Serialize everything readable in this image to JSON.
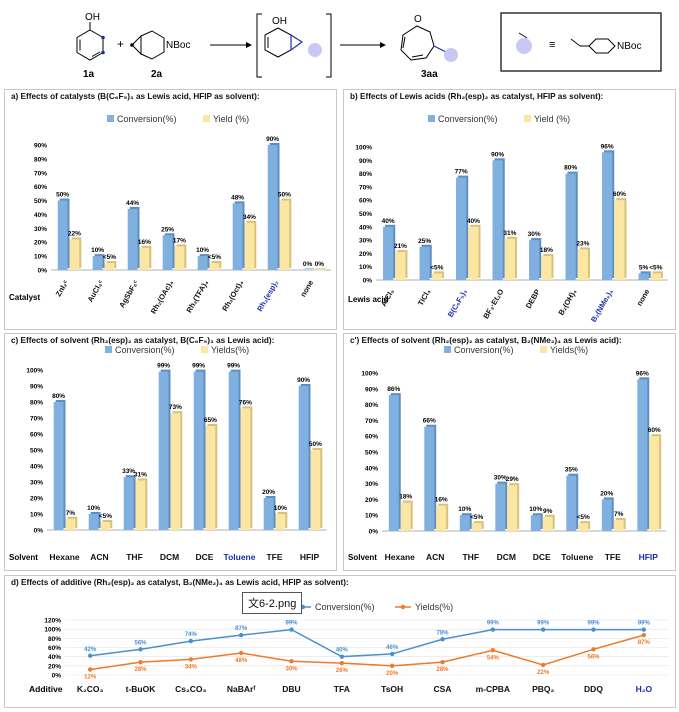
{
  "scheme": {
    "labels": {
      "reactant1": "1a",
      "reactant2": "2a",
      "product": "3aa",
      "plus": "+",
      "boc": "NBoc",
      "oh": "OH",
      "o": "O"
    },
    "legend_boc": "NBoc",
    "equiv": "≡"
  },
  "tooltip": "文6-2.png",
  "colors": {
    "conversion": "#7fb0e0",
    "yield": "#fbe7a3",
    "conv_line": "#4a90d0",
    "yield_line": "#ee7a2b",
    "highlight": "#1a2fb0",
    "bubble": "#c8c8f4"
  },
  "chart_data": [
    {
      "id": "a",
      "type": "bar",
      "title": "a) Effects of catalysts (B(C₆F₅)₃ as Lewis acid, HFIP as solvent):",
      "legend": [
        "Conversion(%)",
        "Yield (%)"
      ],
      "axis_category_label": "Catalyst",
      "categories": [
        "ZnI₂ᶜ",
        "AuCl₃ᶜ",
        "AgSbF₆ᶜ",
        "Rh₂(OAc)₄",
        "Rh₂(TFA)₄",
        "Rh₂(Oct)₄",
        "Rh₂(esp)₂",
        "none"
      ],
      "highlight_index": 6,
      "ylim": [
        0,
        90
      ],
      "yticks": [
        "0%",
        "10%",
        "20%",
        "30%",
        "40%",
        "50%",
        "60%",
        "70%",
        "80%",
        "90%"
      ],
      "series": [
        {
          "name": "Conversion(%)",
          "values": [
            50,
            10,
            44,
            25,
            10,
            48,
            90,
            0
          ],
          "labels": [
            "50%",
            "10%",
            "44%",
            "25%",
            "10%",
            "48%",
            "90%",
            "0%"
          ]
        },
        {
          "name": "Yield (%)",
          "values": [
            22,
            5,
            16,
            17,
            5,
            34,
            50,
            0
          ],
          "labels": [
            "22%",
            "<5%",
            "16%",
            "17%",
            "<5%",
            "34%",
            "50%",
            "0%"
          ]
        }
      ]
    },
    {
      "id": "b",
      "type": "bar",
      "title": "b) Effects of Lewis acids (Rh₂(esp)₂ as catalyst, HFIP as solvent):",
      "legend": [
        "Conversion(%)",
        "Yield (%)"
      ],
      "axis_category_label": "Lewis acid",
      "categories": [
        "AlCl₃",
        "TiCl₄",
        "B(C₆F₅)₃",
        "BF₃·Et₂O",
        "DEBP",
        "B₂(OH)₄",
        "B₂(NMe₂)₄",
        "none"
      ],
      "highlight_index": 2,
      "highlight_index2": 6,
      "ylim": [
        0,
        100
      ],
      "yticks": [
        "0%",
        "10%",
        "20%",
        "30%",
        "40%",
        "50%",
        "60%",
        "70%",
        "80%",
        "90%",
        "100%"
      ],
      "series": [
        {
          "name": "Conversion(%)",
          "values": [
            40,
            25,
            77,
            90,
            30,
            80,
            96,
            5
          ],
          "labels": [
            "40%",
            "25%",
            "77%",
            "90%",
            "30%",
            "80%",
            "96%",
            "5%"
          ]
        },
        {
          "name": "Yield (%)",
          "values": [
            21,
            5,
            40,
            31,
            18,
            23,
            60,
            5
          ],
          "labels": [
            "21%",
            "<5%",
            "40%",
            "31%",
            "18%",
            "23%",
            "60%",
            "<5%"
          ]
        }
      ]
    },
    {
      "id": "c",
      "type": "bar",
      "title": "c) Effects of solvent (Rh₂(esp)₂ as catalyst, B(C₆F₅)₃ as Lewis acid):",
      "legend": [
        "Conversion(%)",
        "Yields(%)"
      ],
      "axis_category_label": "Solvent",
      "categories": [
        "Hexane",
        "ACN",
        "THF",
        "DCM",
        "DCE",
        "Toluene",
        "TFE",
        "HFIP"
      ],
      "highlight_index": 5,
      "ylim": [
        0,
        100
      ],
      "yticks": [
        "0%",
        "10%",
        "20%",
        "30%",
        "40%",
        "50%",
        "60%",
        "70%",
        "80%",
        "90%",
        "100%"
      ],
      "series": [
        {
          "name": "Conversion(%)",
          "values": [
            80,
            10,
            33,
            99,
            99,
            99,
            20,
            90
          ],
          "labels": [
            "80%",
            "10%",
            "33%",
            "99%",
            "99%",
            "99%",
            "20%",
            "90%"
          ]
        },
        {
          "name": "Yields(%)",
          "values": [
            7,
            5,
            31,
            73,
            65,
            76,
            10,
            50
          ],
          "labels": [
            "7%",
            "<5%",
            "31%",
            "73%",
            "65%",
            "76%",
            "10%",
            "50%"
          ]
        }
      ]
    },
    {
      "id": "c2",
      "type": "bar",
      "title": "c') Effects of solvent (Rh₂(esp)₂ as catalyst, B₂(NMe₂)₄ as Lewis acid):",
      "legend": [
        "Conversion(%)",
        "Yields(%)"
      ],
      "axis_category_label": "Solvent",
      "categories": [
        "Hexane",
        "ACN",
        "THF",
        "DCM",
        "DCE",
        "Toluene",
        "TFE",
        "HFIP"
      ],
      "highlight_index": 7,
      "ylim": [
        0,
        100
      ],
      "yticks": [
        "0%",
        "10%",
        "20%",
        "30%",
        "40%",
        "50%",
        "60%",
        "70%",
        "80%",
        "90%",
        "100%"
      ],
      "series": [
        {
          "name": "Conversion(%)",
          "values": [
            86,
            66,
            10,
            30,
            10,
            35,
            20,
            96
          ],
          "labels": [
            "86%",
            "66%",
            "10%",
            "30%",
            "10%",
            "35%",
            "20%",
            "96%"
          ]
        },
        {
          "name": "Yields(%)",
          "values": [
            18,
            16,
            5,
            29,
            9,
            5,
            7,
            60
          ],
          "labels": [
            "18%",
            "16%",
            "<5%",
            "29%",
            "9%",
            "<5%",
            "7%",
            "60%"
          ]
        }
      ]
    },
    {
      "id": "d",
      "type": "line",
      "title": "d) Effects of additive (Rh₂(esp)₂ as catalyst, B₂(NMe₂)₄ as Lewis acid, HFIP as solvent):",
      "legend": [
        "Conversion(%)",
        "Yields(%)"
      ],
      "axis_category_label": "Additive",
      "categories": [
        "K₂CO₃",
        "t-BuOK",
        "Cs₂CO₃",
        "NaBArᶠ",
        "DBU",
        "TFA",
        "TsOH",
        "CSA",
        "m-CPBA",
        "PBQ₂",
        "DDQ",
        "H₂O"
      ],
      "highlight_index": 11,
      "ylim": [
        0,
        120
      ],
      "yticks": [
        "0%",
        "20%",
        "40%",
        "60%",
        "80%",
        "100%",
        "120%"
      ],
      "series": [
        {
          "name": "Conversion(%)",
          "values": [
            42,
            56,
            74,
            87,
            99,
            40,
            46,
            78,
            99,
            99,
            99,
            99
          ],
          "labels": [
            "42%",
            "56%",
            "74%",
            "87%",
            "99%",
            "40%",
            "46%",
            "78%",
            "99%",
            "99%",
            "99%",
            "99%"
          ]
        },
        {
          "name": "Yields(%)",
          "values": [
            12,
            28,
            34,
            48,
            30,
            26,
            20,
            28,
            54,
            22,
            56,
            87
          ],
          "labels": [
            "12%",
            "28%",
            "34%",
            "48%",
            "30%",
            "26%",
            "20%",
            "28%",
            "54%",
            "22%",
            "56%",
            "87%"
          ]
        }
      ]
    }
  ]
}
